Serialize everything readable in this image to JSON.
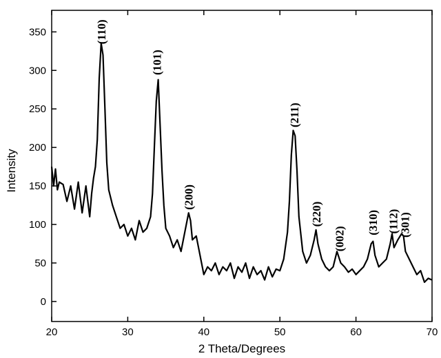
{
  "chart_data": {
    "type": "line",
    "xlabel": "2 Theta/Degrees",
    "ylabel": "Intensity",
    "x": [
      20,
      20.25,
      20.5,
      20.75,
      21,
      21.5,
      22,
      22.5,
      23,
      23.5,
      24,
      24.5,
      25,
      25.25,
      25.5,
      25.75,
      26,
      26.25,
      26.5,
      26.75,
      27,
      27.25,
      27.5,
      28,
      28.5,
      29,
      29.5,
      30,
      30.5,
      31,
      31.5,
      32,
      32.5,
      33,
      33.25,
      33.5,
      33.75,
      34,
      34.25,
      34.5,
      34.75,
      35,
      35.5,
      36,
      36.5,
      37,
      37.5,
      38,
      38.25,
      38.5,
      39,
      39.5,
      40,
      40.5,
      41,
      41.5,
      42,
      42.5,
      43,
      43.5,
      44,
      44.5,
      45,
      45.5,
      46,
      46.5,
      47,
      47.5,
      48,
      48.5,
      49,
      49.5,
      50,
      50.5,
      51,
      51.25,
      51.5,
      51.75,
      52,
      52.25,
      52.5,
      53,
      53.5,
      54,
      54.5,
      54.75,
      55,
      55.5,
      56,
      56.5,
      57,
      57.5,
      58,
      58.5,
      59,
      59.5,
      60,
      60.5,
      61,
      61.5,
      62,
      62.25,
      62.5,
      63,
      63.5,
      64,
      64.5,
      64.75,
      65,
      65.5,
      66,
      66.25,
      66.5,
      67,
      67.5,
      68,
      68.5,
      69,
      69.5,
      70
    ],
    "values": [
      175,
      150,
      172,
      145,
      155,
      152,
      130,
      150,
      120,
      155,
      115,
      150,
      110,
      140,
      160,
      175,
      210,
      290,
      335,
      320,
      250,
      180,
      145,
      125,
      110,
      95,
      100,
      85,
      95,
      80,
      105,
      90,
      95,
      110,
      140,
      200,
      260,
      288,
      230,
      170,
      125,
      95,
      85,
      70,
      80,
      65,
      90,
      115,
      105,
      80,
      85,
      60,
      35,
      45,
      40,
      50,
      35,
      45,
      40,
      50,
      30,
      45,
      38,
      50,
      30,
      45,
      35,
      40,
      28,
      45,
      32,
      42,
      40,
      55,
      90,
      130,
      190,
      222,
      215,
      170,
      110,
      65,
      50,
      60,
      80,
      93,
      75,
      55,
      45,
      40,
      45,
      65,
      50,
      45,
      38,
      42,
      35,
      40,
      45,
      55,
      75,
      78,
      60,
      45,
      50,
      55,
      75,
      88,
      70,
      80,
      88,
      85,
      65,
      55,
      45,
      35,
      40,
      25,
      30,
      28
    ],
    "color": "#000000",
    "xlim": [
      20,
      70
    ],
    "xticks": [
      20,
      30,
      40,
      50,
      60,
      70
    ],
    "ylim": [
      -26,
      378
    ],
    "yticks": [
      0,
      50,
      100,
      150,
      200,
      250,
      300,
      350
    ],
    "annotations": [
      {
        "text": "(110)",
        "x": 26.5,
        "y": 334
      },
      {
        "text": "(101)",
        "x": 33.8,
        "y": 294
      },
      {
        "text": "(200)",
        "x": 38,
        "y": 119
      },
      {
        "text": "(211)",
        "x": 51.9,
        "y": 226
      },
      {
        "text": "(220)",
        "x": 54.8,
        "y": 97
      },
      {
        "text": "(002)",
        "x": 57.8,
        "y": 65
      },
      {
        "text": "(310)",
        "x": 62.2,
        "y": 86
      },
      {
        "text": "(112)",
        "x": 64.9,
        "y": 88
      },
      {
        "text": "(301)",
        "x": 66.4,
        "y": 83
      }
    ]
  }
}
